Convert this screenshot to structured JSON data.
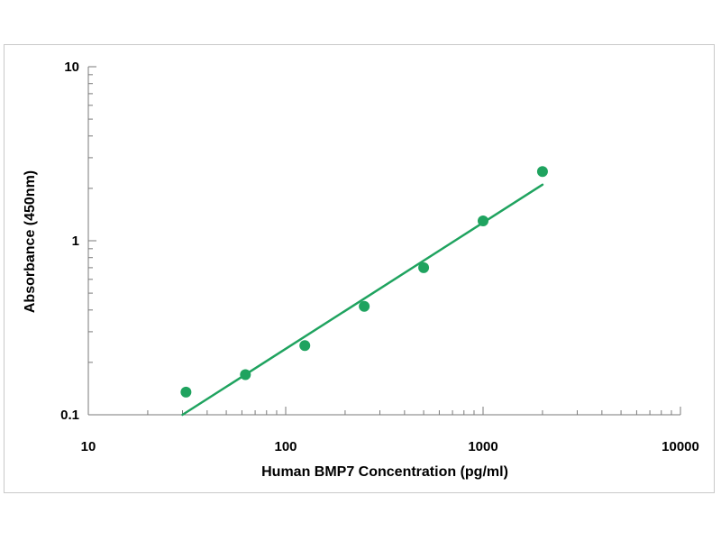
{
  "chart_data": {
    "type": "scatter",
    "xlabel": "Human BMP7 Concentration (pg/ml)",
    "ylabel": "Absorbance (450nm)",
    "x_scale": "log",
    "y_scale": "log",
    "xlim": [
      10,
      10000
    ],
    "ylim": [
      0.1,
      10
    ],
    "x_ticks": [
      "10",
      "100",
      "1000",
      "10000"
    ],
    "y_ticks": [
      "0.1",
      "1",
      "10"
    ],
    "grid": false,
    "legend": "none",
    "colors": {
      "series": "#1fa35f",
      "axis": "#7a7a7a",
      "frame": "#c9c9c9"
    },
    "series": [
      {
        "points": [
          {
            "x": 31.25,
            "y": 0.135
          },
          {
            "x": 62.5,
            "y": 0.17
          },
          {
            "x": 125,
            "y": 0.25
          },
          {
            "x": 250,
            "y": 0.42
          },
          {
            "x": 500,
            "y": 0.7
          },
          {
            "x": 1000,
            "y": 1.3
          },
          {
            "x": 2000,
            "y": 2.5
          }
        ],
        "fit_line": [
          {
            "x": 30,
            "y": 0.1
          },
          {
            "x": 2000,
            "y": 2.1
          }
        ]
      }
    ]
  }
}
